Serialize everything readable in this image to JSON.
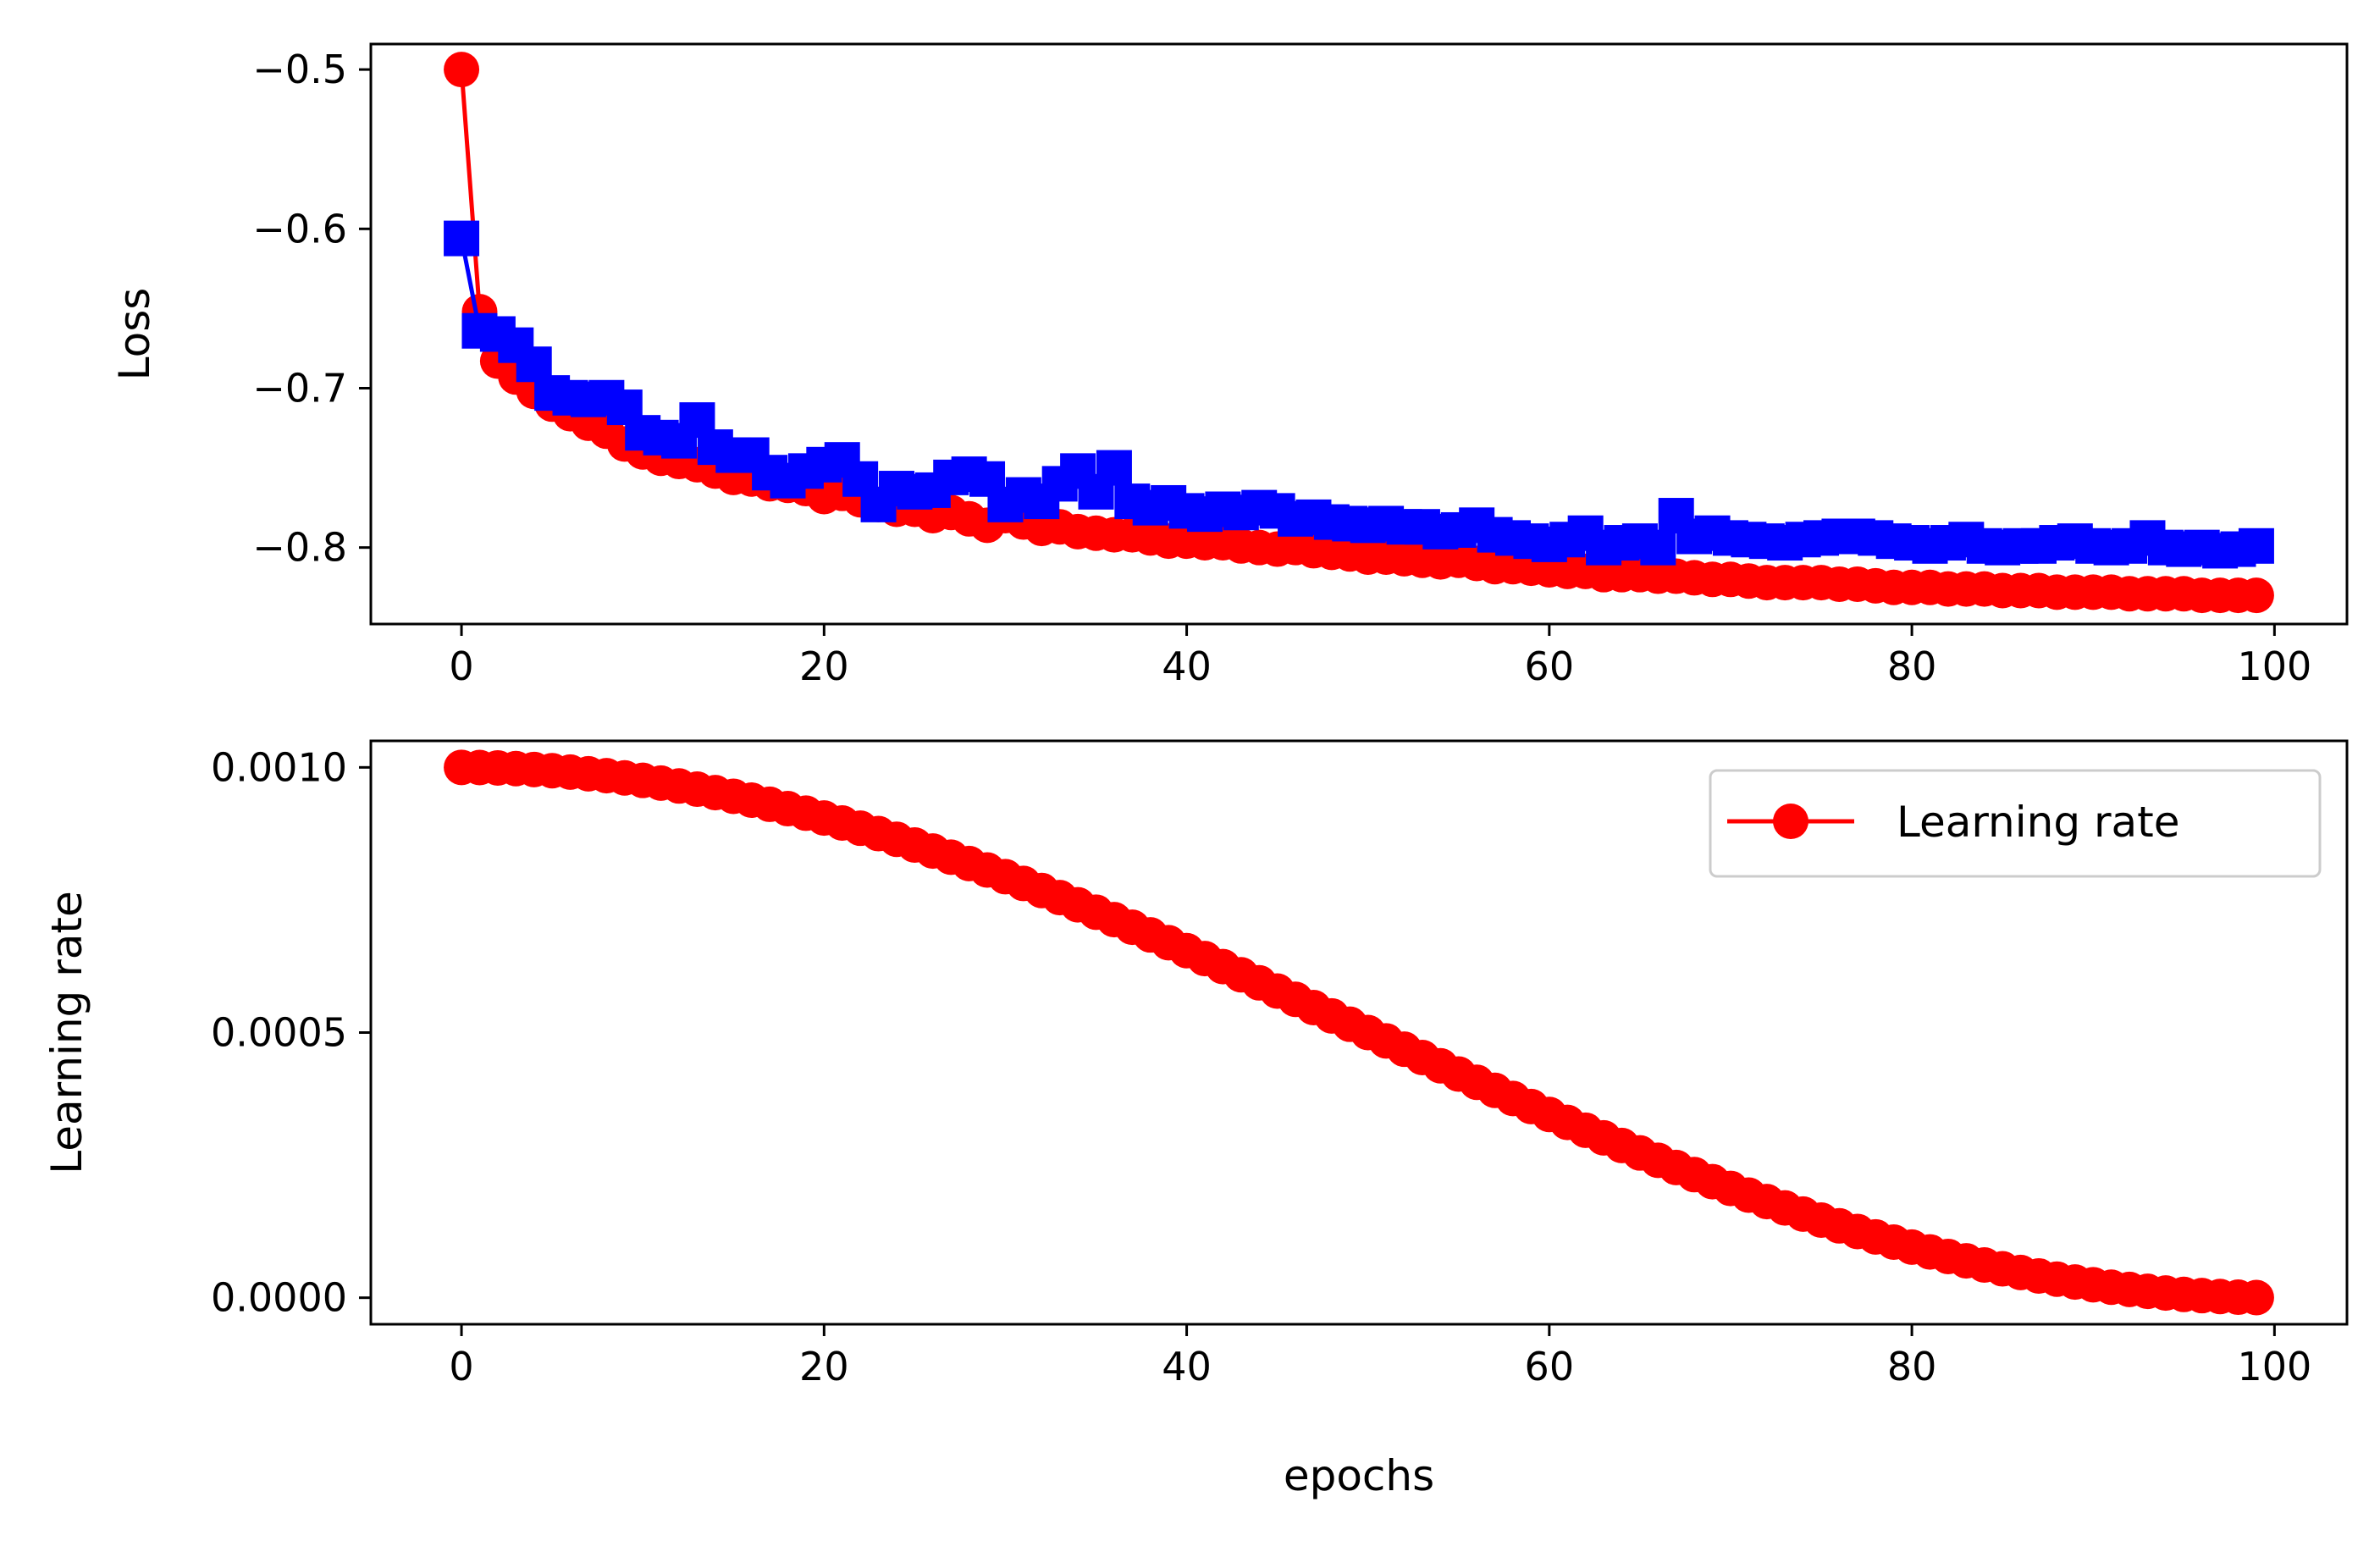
{
  "chart_data": [
    {
      "type": "line",
      "title": "",
      "xlabel": "",
      "ylabel": "Loss",
      "xlim": [
        -5,
        104
      ],
      "ylim": [
        -0.848,
        -0.484
      ],
      "xticks": [
        0,
        20,
        40,
        60,
        80,
        100
      ],
      "xtick_labels": [
        "0",
        "20",
        "40",
        "60",
        "80",
        "100"
      ],
      "yticks": [
        -0.5,
        -0.6,
        -0.7,
        -0.8
      ],
      "ytick_labels": [
        "−0.5",
        "−0.6",
        "−0.7",
        "−0.8"
      ],
      "grid": false,
      "legend": null,
      "series": [
        {
          "color": "#ff0000",
          "marker": "circle",
          "x": [
            0,
            1,
            2,
            3,
            4,
            5,
            6,
            7,
            8,
            9,
            10,
            11,
            12,
            13,
            14,
            15,
            16,
            17,
            18,
            19,
            20,
            21,
            22,
            23,
            24,
            25,
            26,
            27,
            28,
            29,
            30,
            31,
            32,
            33,
            34,
            35,
            36,
            37,
            38,
            39,
            40,
            41,
            42,
            43,
            44,
            45,
            46,
            47,
            48,
            49,
            50,
            51,
            52,
            53,
            54,
            55,
            56,
            57,
            58,
            59,
            60,
            61,
            62,
            63,
            64,
            65,
            66,
            67,
            68,
            69,
            70,
            71,
            72,
            73,
            74,
            75,
            76,
            77,
            78,
            79,
            80,
            81,
            82,
            83,
            84,
            85,
            86,
            87,
            88,
            89,
            90,
            91,
            92,
            93,
            94,
            95,
            96,
            97,
            98,
            99
          ],
          "y": [
            -0.5,
            -0.652,
            -0.683,
            -0.693,
            -0.702,
            -0.71,
            -0.716,
            -0.722,
            -0.727,
            -0.735,
            -0.74,
            -0.744,
            -0.746,
            -0.748,
            -0.752,
            -0.756,
            -0.757,
            -0.76,
            -0.761,
            -0.763,
            -0.768,
            -0.766,
            -0.77,
            -0.773,
            -0.776,
            -0.776,
            -0.78,
            -0.778,
            -0.782,
            -0.786,
            -0.78,
            -0.784,
            -0.788,
            -0.787,
            -0.79,
            -0.791,
            -0.792,
            -0.792,
            -0.794,
            -0.796,
            -0.796,
            -0.797,
            -0.797,
            -0.799,
            -0.8,
            -0.801,
            -0.8,
            -0.802,
            -0.803,
            -0.804,
            -0.806,
            -0.806,
            -0.807,
            -0.808,
            -0.809,
            -0.808,
            -0.81,
            -0.812,
            -0.812,
            -0.813,
            -0.814,
            -0.815,
            -0.815,
            -0.817,
            -0.817,
            -0.817,
            -0.818,
            -0.818,
            -0.819,
            -0.82,
            -0.82,
            -0.821,
            -0.822,
            -0.822,
            -0.822,
            -0.822,
            -0.823,
            -0.823,
            -0.824,
            -0.825,
            -0.825,
            -0.825,
            -0.826,
            -0.826,
            -0.826,
            -0.827,
            -0.827,
            -0.827,
            -0.828,
            -0.828,
            -0.828,
            -0.828,
            -0.829,
            -0.829,
            -0.829,
            -0.829,
            -0.83,
            -0.83,
            -0.83,
            -0.83
          ]
        },
        {
          "color": "#0000ff",
          "marker": "square",
          "x": [
            0,
            1,
            2,
            3,
            4,
            5,
            6,
            7,
            8,
            9,
            10,
            11,
            12,
            13,
            14,
            15,
            16,
            17,
            18,
            19,
            20,
            21,
            22,
            23,
            24,
            25,
            26,
            27,
            28,
            29,
            30,
            31,
            32,
            33,
            34,
            35,
            36,
            37,
            38,
            39,
            40,
            41,
            42,
            43,
            44,
            45,
            46,
            47,
            48,
            49,
            50,
            51,
            52,
            53,
            54,
            55,
            56,
            57,
            58,
            59,
            60,
            61,
            62,
            63,
            64,
            65,
            66,
            67,
            68,
            69,
            70,
            71,
            72,
            73,
            74,
            75,
            76,
            77,
            78,
            79,
            80,
            81,
            82,
            83,
            84,
            85,
            86,
            87,
            88,
            89,
            90,
            91,
            92,
            93,
            94,
            95,
            96,
            97,
            98,
            99
          ],
          "y": [
            -0.606,
            -0.664,
            -0.666,
            -0.673,
            -0.685,
            -0.703,
            -0.706,
            -0.707,
            -0.706,
            -0.712,
            -0.728,
            -0.731,
            -0.733,
            -0.72,
            -0.737,
            -0.742,
            -0.742,
            -0.753,
            -0.758,
            -0.752,
            -0.748,
            -0.745,
            -0.757,
            -0.773,
            -0.763,
            -0.765,
            -0.764,
            -0.756,
            -0.754,
            -0.757,
            -0.773,
            -0.767,
            -0.771,
            -0.76,
            -0.752,
            -0.765,
            -0.75,
            -0.771,
            -0.775,
            -0.772,
            -0.777,
            -0.779,
            -0.776,
            -0.778,
            -0.775,
            -0.777,
            -0.782,
            -0.781,
            -0.784,
            -0.785,
            -0.786,
            -0.785,
            -0.787,
            -0.787,
            -0.79,
            -0.789,
            -0.786,
            -0.792,
            -0.794,
            -0.796,
            -0.798,
            -0.795,
            -0.791,
            -0.8,
            -0.797,
            -0.796,
            -0.8,
            -0.78,
            -0.793,
            -0.791,
            -0.794,
            -0.795,
            -0.796,
            -0.797,
            -0.795,
            -0.794,
            -0.793,
            -0.793,
            -0.794,
            -0.796,
            -0.797,
            -0.799,
            -0.797,
            -0.795,
            -0.799,
            -0.8,
            -0.799,
            -0.799,
            -0.797,
            -0.796,
            -0.799,
            -0.8,
            -0.799,
            -0.794,
            -0.8,
            -0.801,
            -0.8,
            -0.802,
            -0.801,
            -0.799
          ]
        }
      ]
    },
    {
      "type": "line",
      "title": "",
      "xlabel": "epochs",
      "ylabel": "Learning rate",
      "xlim": [
        -5,
        104
      ],
      "ylim": [
        -5e-05,
        0.00105
      ],
      "xticks": [
        0,
        20,
        40,
        60,
        80,
        100
      ],
      "xtick_labels": [
        "0",
        "20",
        "40",
        "60",
        "80",
        "100"
      ],
      "yticks": [
        0.001,
        0.0005,
        0.0
      ],
      "ytick_labels": [
        "0.0010",
        "0.0005",
        "0.0000"
      ],
      "grid": false,
      "legend": {
        "position": "upper right",
        "entries": [
          "Learning rate"
        ]
      },
      "series": [
        {
          "name": "Learning rate",
          "color": "#ff0000",
          "marker": "circle",
          "x": [
            0,
            1,
            2,
            3,
            4,
            5,
            6,
            7,
            8,
            9,
            10,
            11,
            12,
            13,
            14,
            15,
            16,
            17,
            18,
            19,
            20,
            21,
            22,
            23,
            24,
            25,
            26,
            27,
            28,
            29,
            30,
            31,
            32,
            33,
            34,
            35,
            36,
            37,
            38,
            39,
            40,
            41,
            42,
            43,
            44,
            45,
            46,
            47,
            48,
            49,
            50,
            51,
            52,
            53,
            54,
            55,
            56,
            57,
            58,
            59,
            60,
            61,
            62,
            63,
            64,
            65,
            66,
            67,
            68,
            69,
            70,
            71,
            72,
            73,
            74,
            75,
            76,
            77,
            78,
            79,
            80,
            81,
            82,
            83,
            84,
            85,
            86,
            87,
            88,
            89,
            90,
            91,
            92,
            93,
            94,
            95,
            96,
            97,
            98,
            99
          ],
          "y": [
            0.001,
            0.0009997,
            0.000999,
            0.0009977,
            0.000996,
            0.0009938,
            0.0009911,
            0.0009879,
            0.0009843,
            0.0009801,
            0.0009755,
            0.0009704,
            0.0009649,
            0.0009589,
            0.0009524,
            0.0009455,
            0.0009382,
            0.0009304,
            0.0009222,
            0.0009136,
            0.0009045,
            0.0008951,
            0.0008853,
            0.0008751,
            0.0008645,
            0.0008536,
            0.0008423,
            0.0008307,
            0.0008187,
            0.0008065,
            0.0007939,
            0.0007811,
            0.0007679,
            0.0007545,
            0.0007409,
            0.000727,
            0.0007129,
            0.0006986,
            0.0006841,
            0.0006694,
            0.0006545,
            0.0006395,
            0.0006243,
            0.000609,
            0.0005937,
            0.0005782,
            0.0005627,
            0.0005471,
            0.0005314,
            0.0005157,
            0.0005,
            0.0004843,
            0.0004686,
            0.0004529,
            0.0004373,
            0.0004218,
            0.0004063,
            0.000391,
            0.0003757,
            0.0003605,
            0.0003455,
            0.0003306,
            0.0003159,
            0.0003014,
            0.0002871,
            0.000273,
            0.0002591,
            0.0002455,
            0.0002321,
            0.0002189,
            0.0002061,
            0.0001935,
            0.0001813,
            0.0001693,
            0.0001577,
            0.0001464,
            0.0001355,
            0.0001249,
            0.0001147,
            0.0001049,
            9.55e-05,
            8.64e-05,
            7.78e-05,
            6.96e-05,
            6.18e-05,
            5.45e-05,
            4.76e-05,
            4.11e-05,
            3.51e-05,
            2.96e-05,
            2.45e-05,
            1.99e-05,
            1.57e-05,
            1.21e-05,
            8.9e-06,
            6.2e-06,
            4e-06,
            2.3e-06,
            1e-06,
            3e-07
          ]
        }
      ]
    }
  ]
}
